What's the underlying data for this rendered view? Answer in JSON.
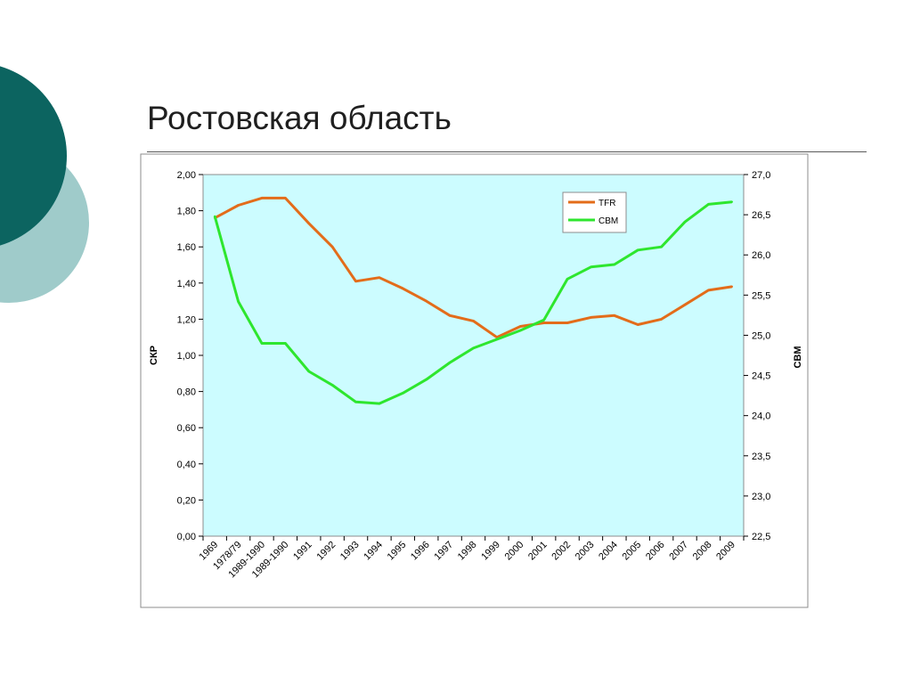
{
  "slide": {
    "title": "Ростовская область"
  },
  "colors": {
    "deco_dark": "#0c6460",
    "deco_light": "#9fcbca",
    "plot_background": "#ccfcff",
    "tfr_line": "#e36c1a",
    "cbm_line": "#2ee62e"
  },
  "chart_data": {
    "type": "line",
    "title": "",
    "xlabel": "",
    "ylabel": "СКР",
    "y2label": "СВМ",
    "categories": [
      "1969",
      "1978/79",
      "1989-1990",
      "1989-1990",
      "1991",
      "1992",
      "1993",
      "1994",
      "1995",
      "1996",
      "1997",
      "1998",
      "1999",
      "2000",
      "2001",
      "2002",
      "2003",
      "2004",
      "2005",
      "2006",
      "2007",
      "2008",
      "2009"
    ],
    "y_ticks": [
      "0,00",
      "0,20",
      "0,40",
      "0,60",
      "0,80",
      "1,00",
      "1,20",
      "1,40",
      "1,60",
      "1,80",
      "2,00"
    ],
    "y2_ticks": [
      "22,5",
      "23,0",
      "23,5",
      "24,0",
      "24,5",
      "25,0",
      "25,5",
      "26,0",
      "26,5",
      "27,0"
    ],
    "ylim": [
      0,
      2.0
    ],
    "y2lim": [
      22.5,
      27.0
    ],
    "grid": false,
    "legend_position": "top-right",
    "series": [
      {
        "name": "TFR",
        "axis": "left",
        "values": [
          1.76,
          1.83,
          1.87,
          1.87,
          1.73,
          1.6,
          1.41,
          1.43,
          1.37,
          1.3,
          1.22,
          1.19,
          1.1,
          1.16,
          1.18,
          1.18,
          1.21,
          1.22,
          1.17,
          1.2,
          1.28,
          1.36,
          1.38
        ]
      },
      {
        "name": "СВМ",
        "axis": "right",
        "values": [
          26.48,
          25.42,
          24.9,
          24.9,
          24.55,
          24.38,
          24.17,
          24.15,
          24.28,
          24.45,
          24.66,
          24.84,
          24.95,
          25.06,
          25.19,
          25.7,
          25.85,
          25.88,
          26.06,
          26.1,
          26.41,
          26.63,
          26.66
        ]
      }
    ]
  }
}
